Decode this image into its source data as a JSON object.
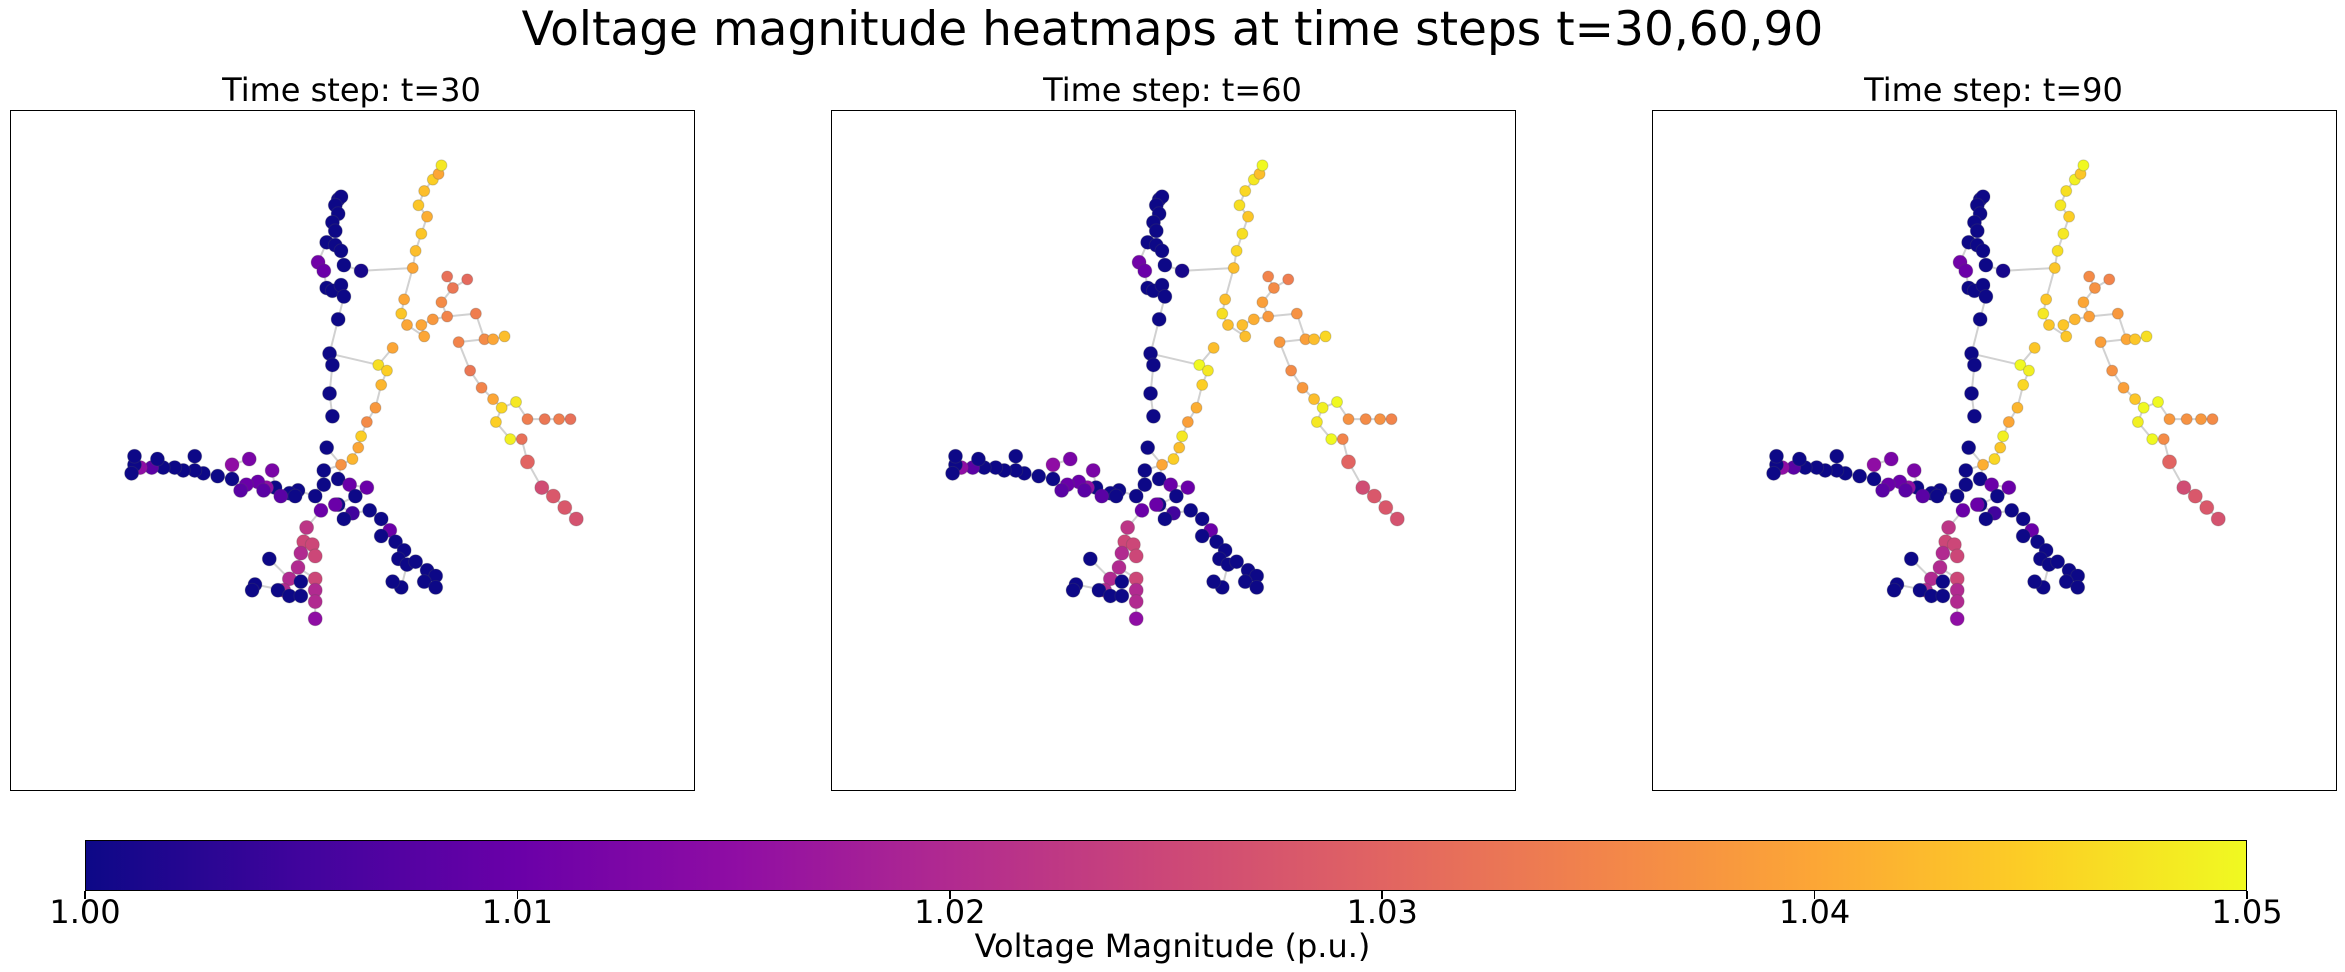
{
  "suptitle": "Voltage magnitude heatmaps at time steps t=30,60,90",
  "chart_data": [
    {
      "type": "scatter",
      "title": "Time step: t=30",
      "panel": 0,
      "nodes_note": "",
      "x": [],
      "y": [],
      "values": []
    },
    {
      "type": "scatter",
      "title": "Time step: t=60",
      "panel": 1,
      "x": [],
      "y": [],
      "values": []
    },
    {
      "type": "scatter",
      "title": "Time step: t=90",
      "panel": 2,
      "x": [],
      "y": [],
      "values": []
    }
  ],
  "colorbar": {
    "label": "Voltage Magnitude (p.u.)",
    "range": [
      1.0,
      1.05
    ],
    "ticks": [
      1.0,
      1.01,
      1.02,
      1.03,
      1.04,
      1.05
    ],
    "tick_labels": [
      "1.00",
      "1.01",
      "1.02",
      "1.03",
      "1.04",
      "1.05"
    ],
    "colormap": "plasma"
  },
  "network": {
    "nodes": [
      [
        -0.05,
        0.88,
        1.0
      ],
      [
        -0.04,
        0.89,
        1.0
      ],
      [
        -0.06,
        0.86,
        1.0
      ],
      [
        -0.05,
        0.83,
        1.0
      ],
      [
        -0.07,
        0.8,
        1.0
      ],
      [
        -0.06,
        0.77,
        1.0
      ],
      [
        -0.09,
        0.73,
        1.0
      ],
      [
        -0.06,
        0.72,
        1.0
      ],
      [
        -0.04,
        0.7,
        1.0
      ],
      [
        -0.03,
        0.65,
        1.0
      ],
      [
        -0.12,
        0.66,
        1.011
      ],
      [
        -0.1,
        0.63,
        1.01
      ],
      [
        0.03,
        0.63,
        1.001
      ],
      [
        -0.09,
        0.57,
        1.0
      ],
      [
        -0.07,
        0.56,
        1.0
      ],
      [
        -0.04,
        0.58,
        1.0
      ],
      [
        -0.03,
        0.54,
        1.0
      ],
      [
        -0.05,
        0.46,
        1.0
      ],
      [
        -0.08,
        0.34,
        1.0
      ],
      [
        0.09,
        0.3,
        1.047
      ],
      [
        0.14,
        0.36,
        1.04
      ],
      [
        0.12,
        0.28,
        1.045
      ],
      [
        0.1,
        0.23,
        1.042
      ],
      [
        0.08,
        0.15,
        1.038
      ],
      [
        0.05,
        0.1,
        1.036
      ],
      [
        0.03,
        0.05,
        1.045
      ],
      [
        0.02,
        0.01,
        1.04
      ],
      [
        0.0,
        -0.03,
        1.042
      ],
      [
        -0.04,
        -0.05,
        1.037
      ],
      [
        0.21,
        0.64,
        1.04
      ],
      [
        0.22,
        0.7,
        1.043
      ],
      [
        0.24,
        0.76,
        1.044
      ],
      [
        0.26,
        0.82,
        1.041
      ],
      [
        0.23,
        0.86,
        1.044
      ],
      [
        0.25,
        0.91,
        1.043
      ],
      [
        0.28,
        0.95,
        1.045
      ],
      [
        0.3,
        0.97,
        1.04
      ],
      [
        0.31,
        1.0,
        1.048
      ],
      [
        0.18,
        0.53,
        1.04
      ],
      [
        0.17,
        0.48,
        1.044
      ],
      [
        0.19,
        0.44,
        1.04
      ],
      [
        0.25,
        0.4,
        1.04
      ],
      [
        0.24,
        0.44,
        1.04
      ],
      [
        0.28,
        0.46,
        1.038
      ],
      [
        0.33,
        0.47,
        1.035
      ],
      [
        0.31,
        0.52,
        1.036
      ],
      [
        0.35,
        0.57,
        1.033
      ],
      [
        0.33,
        0.61,
        1.032
      ],
      [
        0.4,
        0.6,
        1.031
      ],
      [
        0.43,
        0.48,
        1.034
      ],
      [
        0.46,
        0.39,
        1.036
      ],
      [
        0.49,
        0.39,
        1.04
      ],
      [
        0.53,
        0.4,
        1.043
      ],
      [
        0.37,
        0.38,
        1.035
      ],
      [
        0.41,
        0.28,
        1.033
      ],
      [
        0.45,
        0.22,
        1.035
      ],
      [
        0.49,
        0.18,
        1.04
      ],
      [
        0.52,
        0.15,
        1.046
      ],
      [
        0.57,
        0.17,
        1.048
      ],
      [
        0.5,
        0.1,
        1.045
      ],
      [
        0.55,
        0.04,
        1.049
      ],
      [
        0.59,
        0.04,
        1.032
      ],
      [
        0.61,
        0.11,
        1.034
      ],
      [
        0.67,
        0.11,
        1.033
      ],
      [
        0.72,
        0.11,
        1.034
      ],
      [
        0.76,
        0.11,
        1.032
      ],
      [
        0.61,
        -0.04,
        1.03
      ],
      [
        0.66,
        -0.13,
        1.026
      ],
      [
        0.7,
        -0.16,
        1.028
      ],
      [
        0.74,
        -0.2,
        1.028
      ],
      [
        0.78,
        -0.24,
        1.027
      ],
      [
        -0.07,
        0.3,
        1.0
      ],
      [
        -0.08,
        0.2,
        1.0
      ],
      [
        -0.07,
        0.12,
        1.0
      ],
      [
        -0.09,
        0.01,
        1.0
      ],
      [
        -0.1,
        -0.07,
        1.0
      ],
      [
        -0.13,
        -0.16,
        1.0
      ],
      [
        -0.19,
        -0.14,
        1.0
      ],
      [
        -0.22,
        -0.15,
        1.0
      ],
      [
        -0.27,
        -0.13,
        1.0
      ],
      [
        -0.3,
        -0.13,
        1.015
      ],
      [
        -0.33,
        -0.11,
        1.01
      ],
      [
        -0.37,
        -0.12,
        1.01
      ],
      [
        -0.42,
        -0.1,
        1.0
      ],
      [
        -0.47,
        -0.09,
        1.0
      ],
      [
        -0.52,
        -0.08,
        1.0
      ],
      [
        -0.55,
        -0.07,
        1.0
      ],
      [
        -0.59,
        -0.07,
        1.0
      ],
      [
        -0.62,
        -0.06,
        1.0
      ],
      [
        -0.66,
        -0.06,
        1.0
      ],
      [
        -0.7,
        -0.06,
        1.008
      ],
      [
        -0.74,
        -0.06,
        1.015
      ],
      [
        -0.76,
        -0.05,
        1.0
      ],
      [
        -0.77,
        -0.08,
        1.0
      ],
      [
        -0.76,
        -0.02,
        1.0
      ],
      [
        -0.68,
        -0.03,
        1.0
      ],
      [
        -0.55,
        -0.02,
        1.0
      ],
      [
        -0.42,
        -0.05,
        1.015
      ],
      [
        -0.36,
        -0.03,
        1.012
      ],
      [
        -0.28,
        -0.07,
        1.012
      ],
      [
        -0.31,
        -0.14,
        1.008
      ],
      [
        -0.39,
        -0.14,
        1.008
      ],
      [
        -0.25,
        -0.16,
        1.008
      ],
      [
        -0.2,
        -0.16,
        1.0
      ],
      [
        -0.1,
        -0.12,
        1.0
      ],
      [
        -0.05,
        -0.1,
        1.0
      ],
      [
        -0.01,
        -0.12,
        1.01
      ],
      [
        0.05,
        -0.13,
        1.01
      ],
      [
        0.01,
        -0.16,
        1.0
      ],
      [
        -0.05,
        -0.19,
        1.0
      ],
      [
        -0.11,
        -0.21,
        1.01
      ],
      [
        0.0,
        -0.22,
        1.005
      ],
      [
        0.06,
        -0.21,
        1.0
      ],
      [
        0.1,
        -0.24,
        1.0
      ],
      [
        0.13,
        -0.28,
        1.01
      ],
      [
        0.1,
        -0.3,
        1.0
      ],
      [
        0.15,
        -0.32,
        1.0
      ],
      [
        0.18,
        -0.35,
        1.0
      ],
      [
        0.16,
        -0.38,
        1.0
      ],
      [
        0.19,
        -0.4,
        1.0
      ],
      [
        0.22,
        -0.39,
        1.0
      ],
      [
        0.26,
        -0.42,
        1.0
      ],
      [
        0.29,
        -0.44,
        1.0
      ],
      [
        0.25,
        -0.46,
        1.0
      ],
      [
        0.29,
        -0.48,
        1.0
      ],
      [
        0.17,
        -0.48,
        1.0
      ],
      [
        0.14,
        -0.46,
        1.0
      ],
      [
        -0.16,
        -0.27,
        1.022
      ],
      [
        -0.17,
        -0.32,
        1.025
      ],
      [
        -0.18,
        -0.36,
        1.02
      ],
      [
        -0.19,
        -0.41,
        1.02
      ],
      [
        -0.14,
        -0.33,
        1.025
      ],
      [
        -0.13,
        -0.37,
        1.025
      ],
      [
        -0.13,
        -0.45,
        1.025
      ],
      [
        -0.13,
        -0.49,
        1.02
      ],
      [
        -0.13,
        -0.53,
        1.02
      ],
      [
        -0.13,
        -0.59,
        1.015
      ],
      [
        -0.22,
        -0.45,
        1.02
      ],
      [
        -0.24,
        -0.49,
        1.02
      ],
      [
        -0.29,
        -0.38,
        1.0
      ],
      [
        -0.34,
        -0.47,
        1.0
      ],
      [
        -0.35,
        -0.49,
        1.0
      ],
      [
        -0.26,
        -0.49,
        1.0
      ],
      [
        -0.22,
        -0.51,
        1.0
      ],
      [
        -0.18,
        -0.51,
        1.0
      ],
      [
        -0.18,
        -0.46,
        1.0
      ],
      [
        -0.06,
        -0.19,
        1.01
      ],
      [
        -0.03,
        -0.24,
        1.0
      ]
    ]
  }
}
